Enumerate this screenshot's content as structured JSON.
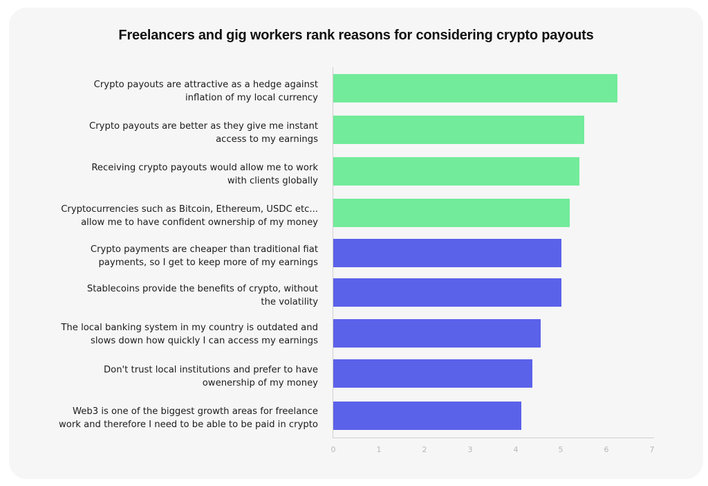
{
  "chart_data": {
    "type": "bar",
    "orientation": "horizontal",
    "title": "Freelancers and gig workers rank reasons for considering crypto payouts",
    "xlabel": "",
    "ylabel": "",
    "xlim": [
      0,
      7
    ],
    "x_ticks": [
      "0",
      "1",
      "2",
      "3",
      "4",
      "5",
      "6",
      "7"
    ],
    "grid": false,
    "legend": null,
    "categories": [
      "Crypto payouts are attractive as a hedge against inflation of my local currency",
      "Crypto payouts are better as they give me instant access to my earnings",
      "Receiving crypto payouts would allow me to work with clients globally",
      "Cryptocurrencies such as Bitcoin, Ethereum, USDC etc... allow me to have confident ownership of my money",
      "Crypto payments are cheaper than traditional fiat payments, so I get to keep more of my earnings",
      "Stablecoins provide the benefits of crypto, without the volatility",
      "The local banking system in my country is outdated and slows down how quickly I can access my earnings",
      "Don't trust local institutions and prefer to have owenership of my money",
      "Web3 is one of the biggest growth areas for freelance work and therefore I need to be able to be paid in crypto"
    ],
    "values": [
      6.24,
      5.51,
      5.4,
      5.19,
      5.01,
      5.01,
      4.55,
      4.37,
      4.13
    ],
    "bar_colors": [
      "#72eb9a",
      "#72eb9a",
      "#72eb9a",
      "#72eb9a",
      "#5b62ea",
      "#5b62ea",
      "#5b62ea",
      "#5b62ea",
      "#5b62ea"
    ]
  },
  "colors": {
    "top_group": "#72eb9a",
    "bottom_group": "#5b62ea",
    "card_background": "#f6f6f6",
    "axis": "#cfcfcf",
    "tick_text": "#b7b7b7"
  },
  "labels": [
    {
      "line1": "Crypto payouts are attractive as a hedge against",
      "line2": "inflation of my local currency"
    },
    {
      "line1": "Crypto payouts are better as they give me instant",
      "line2": "access to my earnings"
    },
    {
      "line1": "Receiving crypto payouts would allow me to work",
      "line2": "with clients globally"
    },
    {
      "line1": "Cryptocurrencies such as Bitcoin, Ethereum, USDC etc...",
      "line2": "allow me to have confident ownership of my money"
    },
    {
      "line1": "Crypto payments are cheaper than traditional fiat",
      "line2": "payments, so I get to keep more of my earnings"
    },
    {
      "line1": "Stablecoins provide the benefits of crypto, without",
      "line2": "the volatility"
    },
    {
      "line1": "The local banking system in my country is outdated and",
      "line2": "slows down how quickly I can access my earnings"
    },
    {
      "line1": "Don't trust local institutions and prefer to have",
      "line2": "owenership of my money"
    },
    {
      "line1": "Web3 is one of the biggest growth areas for freelance",
      "line2": "work and therefore I need to be able to be paid in crypto"
    }
  ]
}
